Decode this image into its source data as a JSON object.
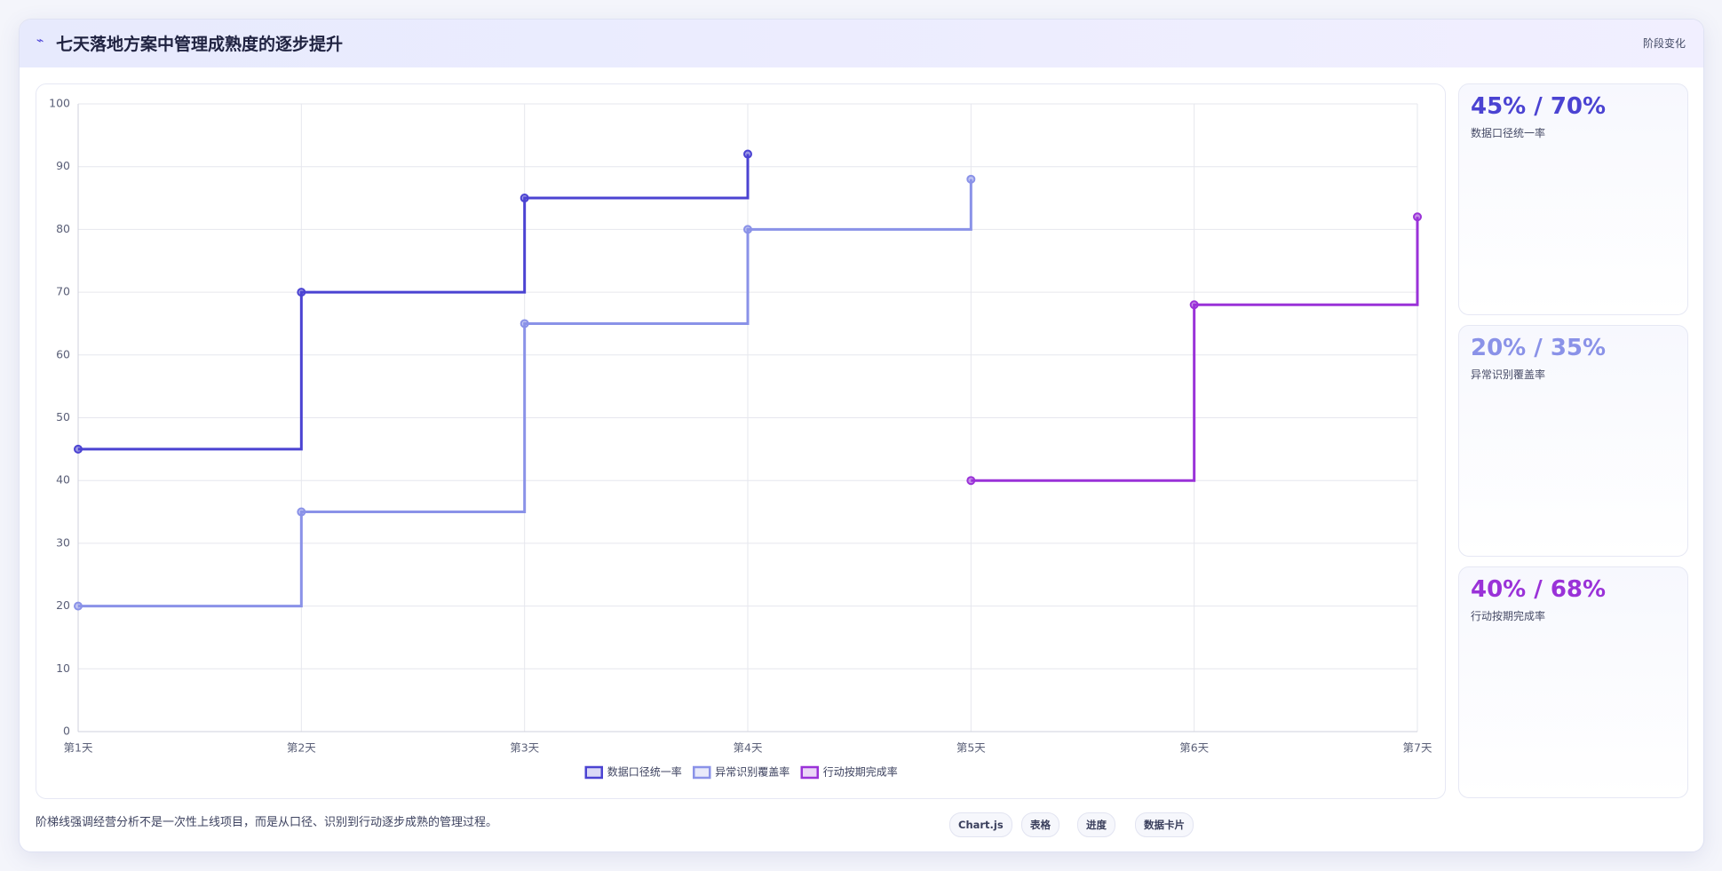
{
  "header": {
    "title": "七天落地方案中管理成熟度的逐步提升",
    "badge": "阶段变化"
  },
  "chart_data": {
    "type": "line",
    "stepped": true,
    "categories": [
      "第1天",
      "第2天",
      "第3天",
      "第4天",
      "第5天",
      "第6天",
      "第7天"
    ],
    "series": [
      {
        "name": "数据口径统一率",
        "color": "#4b43d2",
        "values": [
          45,
          70,
          85,
          92,
          null,
          null,
          null
        ]
      },
      {
        "name": "异常识别覆盖率",
        "color": "#8a92e8",
        "values": [
          20,
          35,
          65,
          80,
          88,
          null,
          null
        ]
      },
      {
        "name": "行动按期完成率",
        "color": "#9a32d8",
        "values": [
          null,
          null,
          null,
          null,
          40,
          68,
          82
        ]
      }
    ],
    "ylim": [
      0,
      100
    ],
    "yticks": [
      0,
      10,
      20,
      30,
      40,
      50,
      60,
      70,
      80,
      90,
      100
    ],
    "grid": true,
    "legend": "bottom"
  },
  "cards": [
    {
      "value": "45% / 70%",
      "label": "数据口径统一率"
    },
    {
      "value": "20% / 35%",
      "label": "异常识别覆盖率"
    },
    {
      "value": "40% / 68%",
      "label": "行动按期完成率"
    }
  ],
  "footer": {
    "note": "阶梯线强调经营分析不是一次性上线项目，而是从口径、识别到行动逐步成熟的管理过程。",
    "chips": [
      "Chart.js",
      "表格",
      "进度",
      "数据卡片"
    ]
  }
}
